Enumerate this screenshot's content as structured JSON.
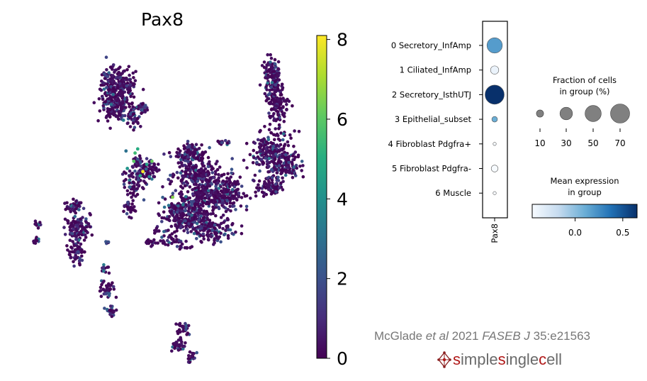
{
  "chart_data": [
    {
      "type": "scatter",
      "title": "Pax8",
      "colorbar": {
        "min": 0,
        "max": 8.1,
        "ticks": [
          0,
          2,
          4,
          6,
          8
        ],
        "tick_labels": [
          "0",
          "2",
          "4",
          "6",
          "8"
        ],
        "colormap": "viridis"
      },
      "points": [
        {
          "x": 7.5,
          "y": 3.0,
          "value": 8.0
        },
        {
          "x": 6.9,
          "y": 4.8,
          "value": 5.5
        },
        {
          "x": 6.8,
          "y": 4.0,
          "value": 6.0
        },
        {
          "x": 7.1,
          "y": 5.2,
          "value": 5.0
        },
        {
          "x": 7.8,
          "y": 3.7,
          "value": 4.5
        },
        {
          "x": 7.3,
          "y": 2.6,
          "value": 4.8
        },
        {
          "x": 8.2,
          "y": 4.0,
          "value": 6.2
        },
        {
          "x": 6.3,
          "y": 3.3,
          "value": 4.2
        },
        {
          "x": 6.0,
          "y": 8.0,
          "value": 3.4
        },
        {
          "x": 6.2,
          "y": 5.0,
          "value": 3.0
        },
        {
          "x": 9.8,
          "y": 0.5,
          "value": 6.5
        },
        {
          "x": 9.5,
          "y": -0.3,
          "value": 3.0
        },
        {
          "x": 8.0,
          "y": 2.5,
          "value": 3.6
        },
        {
          "x": 6.5,
          "y": 1.5,
          "value": 2.5
        },
        {
          "x": 5.2,
          "y": 10.5,
          "value": 2.8
        }
      ]
    },
    {
      "type": "dotplot",
      "gene": "Pax8",
      "categories": [
        "0 Secretory_InfAmp",
        "1 Ciliated_InfAmp",
        "2 Secretory_IsthUTJ",
        "3 Epithelial_subset",
        "4 Fibroblast Pdgfra+",
        "5 Fibroblast Pdgfra-",
        "6 Muscle"
      ],
      "fraction_pct": [
        45,
        13,
        70,
        6,
        2,
        9,
        2
      ],
      "mean_expression": [
        0.18,
        -0.38,
        0.65,
        0.1,
        -0.45,
        -0.5,
        -0.5
      ],
      "size_legend": {
        "title": "Fraction of cells\nin group (%)",
        "values": [
          10,
          30,
          50,
          70
        ],
        "labels": [
          "10",
          "30",
          "50",
          "70"
        ]
      },
      "color_legend": {
        "title": "Mean expression\nin group",
        "min": -0.45,
        "max": 0.65,
        "ticks": [
          0.0,
          0.5
        ],
        "tick_labels": [
          "0.0",
          "0.5"
        ],
        "colormap": "Blues"
      }
    }
  ],
  "footer": {
    "citation_author": "McGlade",
    "citation_etal": "et al",
    "citation_year": "2021",
    "citation_journal": "FASEB J",
    "citation_ref": "35:e21563",
    "brand_s1": "s",
    "brand_imple": "imple",
    "brand_s2": "s",
    "brand_ingle": "ingle",
    "brand_c": "c",
    "brand_ell": "ell"
  }
}
